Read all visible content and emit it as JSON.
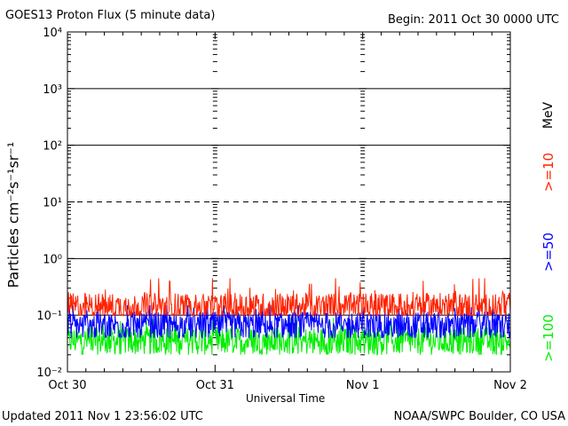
{
  "header": {
    "title": "GOES13 Proton Flux (5 minute data)",
    "begin": "Begin: 2011 Oct 30 0000 UTC"
  },
  "footer": {
    "updated": "Updated 2011 Nov  1 23:56:02 UTC",
    "source": "NOAA/SWPC Boulder, CO USA"
  },
  "legend": {
    "unit": "MeV",
    "items": [
      {
        "label": ">=10",
        "color": "#ff2200"
      },
      {
        "label": ">=50",
        "color": "#0000ff"
      },
      {
        "label": ">=100",
        "color": "#00ee00"
      }
    ]
  },
  "chart_data": {
    "type": "line",
    "title": "GOES13 Proton Flux (5 minute data)",
    "xlabel": "Universal Time",
    "ylabel": "Particles cm⁻²s⁻¹sr⁻¹",
    "yscale": "log",
    "ylim": [
      0.01,
      10000
    ],
    "y_ticks": [
      {
        "label": "10⁴",
        "value": 10000
      },
      {
        "label": "10³",
        "value": 1000
      },
      {
        "label": "10²",
        "value": 100
      },
      {
        "label": "10¹",
        "value": 10
      },
      {
        "label": "10⁰",
        "value": 1
      },
      {
        "label": "10⁻¹",
        "value": 0.1
      },
      {
        "label": "10⁻²",
        "value": 0.01
      }
    ],
    "x_ticks": [
      "Oct 30",
      "Oct 31",
      "Nov 1",
      "Nov 2"
    ],
    "xlim_days": [
      0,
      3
    ],
    "threshold_lines": [
      1000,
      100,
      10,
      1,
      0.1
    ],
    "dashed_line": 10,
    "series": [
      {
        "name": ">=10 MeV",
        "color": "#ff2200",
        "baseline": 0.14,
        "min": 0.1,
        "max": 0.45
      },
      {
        "name": ">=50 MeV",
        "color": "#0000ff",
        "baseline": 0.065,
        "min": 0.04,
        "max": 0.15
      },
      {
        "name": ">=100 MeV",
        "color": "#00ee00",
        "baseline": 0.035,
        "min": 0.02,
        "max": 0.09
      }
    ],
    "grid": true
  }
}
